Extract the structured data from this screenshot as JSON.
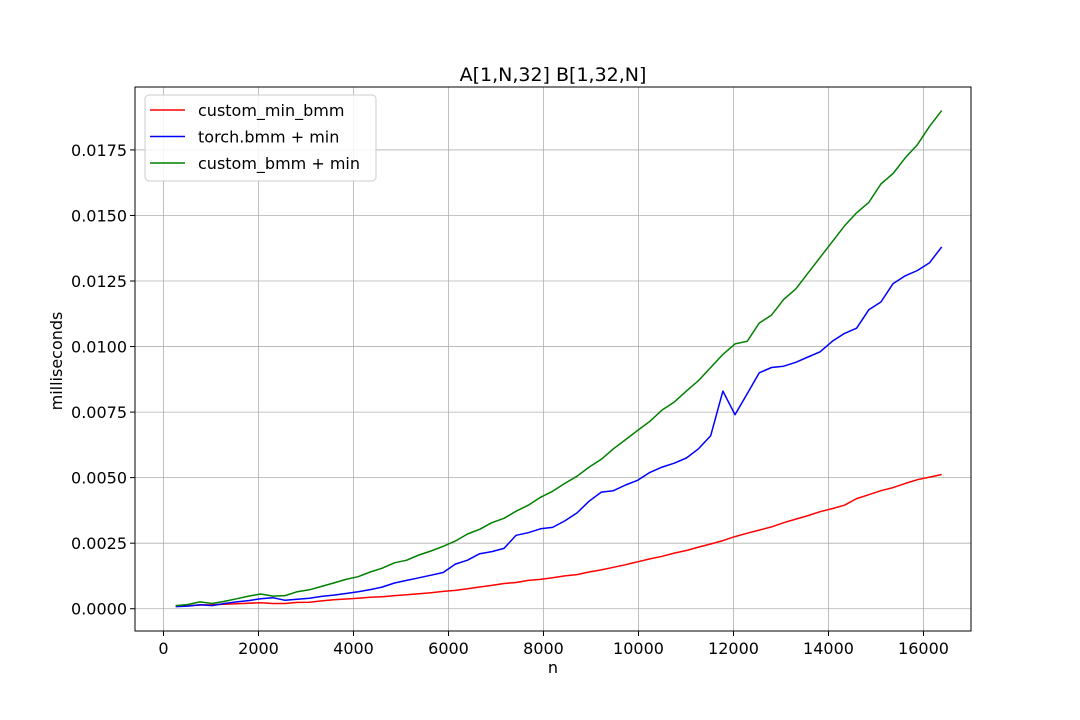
{
  "chart_data": {
    "type": "line",
    "title": "A[1,N,32] B[1,32,N]",
    "xlabel": "n",
    "ylabel": "milliseconds",
    "xlim": [
      -600,
      17000
    ],
    "ylim": [
      -0.00085,
      0.0199
    ],
    "x_ticks": [
      0,
      2000,
      4000,
      6000,
      8000,
      10000,
      12000,
      14000,
      16000
    ],
    "x_tick_labels": [
      "0",
      "2000",
      "4000",
      "6000",
      "8000",
      "10000",
      "12000",
      "14000",
      "16000"
    ],
    "y_ticks": [
      0.0,
      0.0025,
      0.005,
      0.0075,
      0.01,
      0.0125,
      0.015,
      0.0175
    ],
    "y_tick_labels": [
      "0.0000",
      "0.0025",
      "0.0050",
      "0.0075",
      "0.0100",
      "0.0125",
      "0.0150",
      "0.0175"
    ],
    "grid": true,
    "legend_position": "top-left",
    "x": [
      256,
      512,
      768,
      1024,
      1280,
      1536,
      1792,
      2048,
      2304,
      2560,
      2816,
      3072,
      3328,
      3584,
      3840,
      4096,
      4352,
      4608,
      4864,
      5120,
      5376,
      5632,
      5888,
      6144,
      6400,
      6656,
      6912,
      7168,
      7424,
      7680,
      7936,
      8192,
      8448,
      8704,
      8960,
      9216,
      9472,
      9728,
      9984,
      10240,
      10496,
      10752,
      11008,
      11264,
      11520,
      11776,
      12032,
      12288,
      12544,
      12800,
      13056,
      13312,
      13568,
      13824,
      14080,
      14336,
      14592,
      14848,
      15104,
      15360,
      15616,
      15872,
      16128,
      16384
    ],
    "series": [
      {
        "name": "custom_min_bmm",
        "color": "#ff0000",
        "values": [
          0.0001,
          0.00011,
          0.00014,
          0.00015,
          0.00017,
          0.00019,
          0.00021,
          0.00023,
          0.0002,
          0.0002,
          0.00024,
          0.00025,
          0.0003,
          0.00034,
          0.00037,
          0.0004,
          0.00044,
          0.00046,
          0.0005,
          0.00053,
          0.00057,
          0.00061,
          0.00066,
          0.0007,
          0.00076,
          0.00083,
          0.00089,
          0.00096,
          0.001,
          0.00108,
          0.00112,
          0.00118,
          0.00125,
          0.0013,
          0.0014,
          0.00148,
          0.00158,
          0.00168,
          0.00179,
          0.0019,
          0.002,
          0.00212,
          0.00222,
          0.00235,
          0.00247,
          0.0026,
          0.00275,
          0.00288,
          0.003,
          0.00312,
          0.00328,
          0.00342,
          0.00355,
          0.0037,
          0.00382,
          0.00395,
          0.0042,
          0.00435,
          0.0045,
          0.00462,
          0.00478,
          0.00492,
          0.00502,
          0.00512
        ]
      },
      {
        "name": "torch.bmm + min",
        "color": "#0000ff",
        "values": [
          8e-05,
          0.0001,
          0.00015,
          0.00012,
          0.0002,
          0.00026,
          0.00031,
          0.00038,
          0.00042,
          0.00032,
          0.00036,
          0.0004,
          0.00047,
          0.00052,
          0.00058,
          0.00065,
          0.00073,
          0.00083,
          0.00098,
          0.00108,
          0.00118,
          0.00128,
          0.00138,
          0.0017,
          0.00185,
          0.0021,
          0.00218,
          0.0023,
          0.0028,
          0.0029,
          0.00305,
          0.0031,
          0.00335,
          0.00365,
          0.0041,
          0.00445,
          0.0045,
          0.00472,
          0.0049,
          0.0052,
          0.0054,
          0.00555,
          0.00575,
          0.0061,
          0.0066,
          0.0083,
          0.0074,
          0.0082,
          0.009,
          0.0092,
          0.00925,
          0.0094,
          0.0096,
          0.0098,
          0.0102,
          0.0105,
          0.0107,
          0.0114,
          0.0117,
          0.0124,
          0.0127,
          0.0129,
          0.0132,
          0.0138
        ]
      },
      {
        "name": "custom_bmm + min",
        "color": "#008000",
        "values": [
          0.00012,
          0.00016,
          0.00026,
          0.0002,
          0.00028,
          0.00038,
          0.00048,
          0.00056,
          0.00048,
          0.0005,
          0.00065,
          0.00072,
          0.00085,
          0.00098,
          0.00112,
          0.00122,
          0.0014,
          0.00155,
          0.00175,
          0.00185,
          0.00205,
          0.0022,
          0.00238,
          0.00258,
          0.00285,
          0.00303,
          0.00328,
          0.00345,
          0.00372,
          0.00395,
          0.00425,
          0.00448,
          0.00478,
          0.00505,
          0.0054,
          0.0057,
          0.0061,
          0.00645,
          0.0068,
          0.00715,
          0.00758,
          0.00788,
          0.0083,
          0.0087,
          0.0092,
          0.0097,
          0.0101,
          0.0102,
          0.0109,
          0.0112,
          0.0118,
          0.0122,
          0.0128,
          0.0134,
          0.014,
          0.0146,
          0.0151,
          0.0155,
          0.0162,
          0.0166,
          0.0172,
          0.0177,
          0.0184,
          0.019
        ]
      }
    ]
  }
}
